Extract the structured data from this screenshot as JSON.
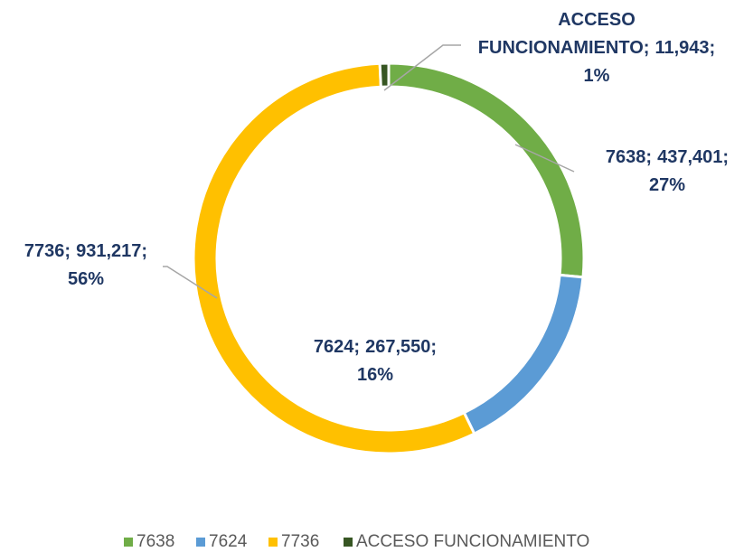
{
  "chart_data": {
    "type": "donut",
    "categories": [
      "7638",
      "7624",
      "7736",
      "ACCESO FUNCIONAMIENTO"
    ],
    "values": [
      437401,
      267550,
      931217,
      11943
    ],
    "value_labels": [
      "437,401",
      "267,550",
      "931,217",
      "11,943"
    ],
    "percentages": [
      27,
      16,
      56,
      1
    ],
    "percent_labels": [
      "27%",
      "16%",
      "56%",
      "1%"
    ],
    "label_separator": ";",
    "colors": [
      "#70ad47",
      "#5b9bd5",
      "#ffc000",
      "#375623"
    ],
    "legend": "bottom"
  }
}
